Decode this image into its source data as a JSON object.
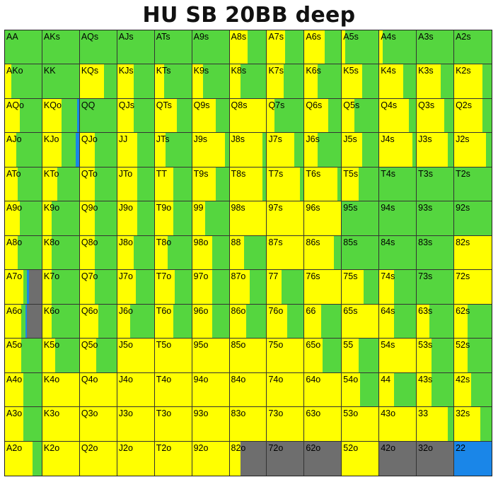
{
  "chart_data": {
    "type": "heatmap",
    "title": "HU SB 20BB deep",
    "colors": {
      "yellow": "#ffff00",
      "green": "#55d63f",
      "blue": "#1a86e8",
      "gray": "#6e6e6e"
    },
    "rows": [
      [
        [
          "AA",
          0,
          1,
          0,
          0
        ],
        [
          "AKs",
          0,
          1,
          0,
          0
        ],
        [
          "AQs",
          0,
          1,
          0,
          0
        ],
        [
          "AJs",
          0,
          1,
          0,
          0
        ],
        [
          "ATs",
          0,
          1,
          0,
          0
        ],
        [
          "A9s",
          0,
          1,
          0,
          0
        ],
        [
          "A8s",
          0.5,
          0.5,
          0,
          0
        ],
        [
          "A7s",
          0.5,
          0.5,
          0,
          0
        ],
        [
          "A6s",
          0.55,
          0.45,
          0,
          0
        ],
        [
          "A5s",
          0.1,
          0.9,
          0,
          0
        ],
        [
          "A4s",
          0.1,
          0.9,
          0,
          0
        ],
        [
          "A3s",
          0,
          1,
          0,
          0
        ],
        [
          "A2s",
          0,
          1,
          0,
          0
        ]
      ],
      [
        [
          "AKo",
          0.18,
          0.82,
          0,
          0
        ],
        [
          "KK",
          0,
          1,
          0,
          0
        ],
        [
          "KQs",
          0.65,
          0.35,
          0,
          0
        ],
        [
          "KJs",
          0.45,
          0.55,
          0,
          0
        ],
        [
          "KTs",
          0.25,
          0.75,
          0,
          0
        ],
        [
          "K9s",
          0.3,
          0.7,
          0,
          0
        ],
        [
          "K8s",
          0.3,
          0.7,
          0,
          0
        ],
        [
          "K7s",
          0.45,
          0.55,
          0,
          0
        ],
        [
          "K6s",
          0.35,
          0.65,
          0,
          0
        ],
        [
          "K5s",
          0.55,
          0.45,
          0,
          0
        ],
        [
          "K4s",
          0.65,
          0.35,
          0,
          0
        ],
        [
          "K3s",
          0.65,
          0.35,
          0,
          0
        ],
        [
          "K2s",
          0.75,
          0.25,
          0,
          0
        ]
      ],
      [
        [
          "AQo",
          0.4,
          0.6,
          0,
          0
        ],
        [
          "KQo",
          0.52,
          0.42,
          0.06,
          0
        ],
        [
          "QQ",
          0,
          1,
          0,
          0
        ],
        [
          "QJs",
          0.45,
          0.55,
          0,
          0
        ],
        [
          "QTs",
          0.6,
          0.4,
          0,
          0
        ],
        [
          "Q9s",
          0.65,
          0.35,
          0,
          0
        ],
        [
          "Q8s",
          1,
          0,
          0,
          0
        ],
        [
          "Q7s",
          0.2,
          0.8,
          0,
          0
        ],
        [
          "Q6s",
          0.65,
          0.35,
          0,
          0
        ],
        [
          "Q5s",
          0.35,
          0.65,
          0,
          0
        ],
        [
          "Q4s",
          0.8,
          0.2,
          0,
          0
        ],
        [
          "Q3s",
          0.75,
          0.25,
          0,
          0
        ],
        [
          "Q2s",
          0.75,
          0.25,
          0,
          0
        ]
      ],
      [
        [
          "AJo",
          0.3,
          0.7,
          0,
          0
        ],
        [
          "KJo",
          0.52,
          0.38,
          0.1,
          0
        ],
        [
          "QJo",
          0.4,
          0.6,
          0,
          0
        ],
        [
          "JJ",
          0.55,
          0.45,
          0,
          0
        ],
        [
          "JTs",
          0.3,
          0.7,
          0,
          0
        ],
        [
          "J9s",
          0.9,
          0.1,
          0,
          0
        ],
        [
          "J8s",
          0.9,
          0.1,
          0,
          0
        ],
        [
          "J7s",
          0.75,
          0.25,
          0,
          0
        ],
        [
          "J6s",
          0.35,
          0.65,
          0,
          0
        ],
        [
          "J5s",
          0.55,
          0.45,
          0,
          0
        ],
        [
          "J4s",
          0.9,
          0.1,
          0,
          0
        ],
        [
          "J3s",
          0.85,
          0.15,
          0,
          0
        ],
        [
          "J2s",
          0.85,
          0.15,
          0,
          0
        ]
      ],
      [
        [
          "ATo",
          0.35,
          0.65,
          0,
          0
        ],
        [
          "KTo",
          0.4,
          0.6,
          0,
          0
        ],
        [
          "QTo",
          0.4,
          0.6,
          0,
          0
        ],
        [
          "JTo",
          0.55,
          0.45,
          0,
          0
        ],
        [
          "TT",
          0.5,
          0.5,
          0,
          0
        ],
        [
          "T9s",
          0.65,
          0.35,
          0,
          0
        ],
        [
          "T8s",
          0.9,
          0.1,
          0,
          0
        ],
        [
          "T7s",
          0.9,
          0.1,
          0,
          0
        ],
        [
          "T6s",
          0.9,
          0.1,
          0,
          0
        ],
        [
          "T5s",
          0.45,
          0.55,
          0,
          0
        ],
        [
          "T4s",
          0,
          1,
          0,
          0
        ],
        [
          "T3s",
          0,
          1,
          0,
          0
        ],
        [
          "T2s",
          0,
          1,
          0,
          0
        ]
      ],
      [
        [
          "A9o",
          0.4,
          0.6,
          0,
          0
        ],
        [
          "K9o",
          0.25,
          0.75,
          0,
          0
        ],
        [
          "Q9o",
          0.4,
          0.6,
          0,
          0
        ],
        [
          "J9o",
          0.55,
          0.45,
          0,
          0
        ],
        [
          "T9o",
          0.5,
          0.5,
          0,
          0
        ],
        [
          "99",
          0.35,
          0.65,
          0,
          0
        ],
        [
          "98s",
          1,
          0,
          0,
          0
        ],
        [
          "97s",
          1,
          0,
          0,
          0
        ],
        [
          "96s",
          1,
          0,
          0,
          0
        ],
        [
          "95s",
          0,
          1,
          0,
          0
        ],
        [
          "94s",
          0,
          1,
          0,
          0
        ],
        [
          "93s",
          0,
          1,
          0,
          0
        ],
        [
          "92s",
          0,
          1,
          0,
          0
        ]
      ],
      [
        [
          "A8o",
          0.35,
          0.65,
          0,
          0
        ],
        [
          "K8o",
          0.25,
          0.75,
          0,
          0
        ],
        [
          "Q8o",
          0.4,
          0.6,
          0,
          0
        ],
        [
          "J8o",
          0.45,
          0.55,
          0,
          0
        ],
        [
          "T8o",
          0.35,
          0.65,
          0,
          0
        ],
        [
          "98o",
          0.55,
          0.45,
          0,
          0
        ],
        [
          "88",
          0.4,
          0.6,
          0,
          0
        ],
        [
          "87s",
          1,
          0,
          0,
          0
        ],
        [
          "86s",
          0.8,
          0.2,
          0,
          0
        ],
        [
          "85s",
          0,
          1,
          0,
          0
        ],
        [
          "84s",
          0,
          1,
          0,
          0
        ],
        [
          "83s",
          0,
          1,
          0,
          0
        ],
        [
          "82s",
          1,
          0,
          0,
          0
        ]
      ],
      [
        [
          "A7o",
          0.5,
          0.1,
          0.05,
          0.35
        ],
        [
          "K7o",
          0.25,
          0.75,
          0,
          0
        ],
        [
          "Q7o",
          0.4,
          0.6,
          0,
          0
        ],
        [
          "J7o",
          0.5,
          0.5,
          0,
          0
        ],
        [
          "T7o",
          0.55,
          0.45,
          0,
          0
        ],
        [
          "97o",
          0.55,
          0.45,
          0,
          0
        ],
        [
          "87o",
          0.55,
          0.45,
          0,
          0
        ],
        [
          "77",
          0.4,
          0.6,
          0,
          0
        ],
        [
          "76s",
          1,
          0,
          0,
          0
        ],
        [
          "75s",
          0.6,
          0.4,
          0,
          0
        ],
        [
          "74s",
          0.4,
          0.6,
          0,
          0
        ],
        [
          "73s",
          0,
          1,
          0,
          0
        ],
        [
          "72s",
          1,
          0,
          0,
          0
        ]
      ],
      [
        [
          "A6o",
          0.45,
          0.1,
          0.05,
          0.4
        ],
        [
          "K6o",
          0.25,
          0.75,
          0,
          0
        ],
        [
          "Q6o",
          0.5,
          0.5,
          0,
          0
        ],
        [
          "J6o",
          0.35,
          0.65,
          0,
          0
        ],
        [
          "T6o",
          0.5,
          0.5,
          0,
          0
        ],
        [
          "96o",
          0.55,
          0.45,
          0,
          0
        ],
        [
          "86o",
          0.45,
          0.55,
          0,
          0
        ],
        [
          "76o",
          0.55,
          0.45,
          0,
          0
        ],
        [
          "66",
          0.45,
          0.55,
          0,
          0
        ],
        [
          "65s",
          1,
          0,
          0,
          0
        ],
        [
          "64s",
          0.4,
          0.6,
          0,
          0
        ],
        [
          "63s",
          0.35,
          0.65,
          0,
          0
        ],
        [
          "62s",
          0.35,
          0.65,
          0,
          0
        ]
      ],
      [
        [
          "A5o",
          0.45,
          0.55,
          0,
          0
        ],
        [
          "K5o",
          0.35,
          0.65,
          0,
          0
        ],
        [
          "Q5o",
          0.45,
          0.55,
          0,
          0
        ],
        [
          "J5o",
          1,
          0,
          0,
          0
        ],
        [
          "T5o",
          1,
          0,
          0,
          0
        ],
        [
          "95o",
          1,
          0,
          0,
          0
        ],
        [
          "85o",
          1,
          0,
          0,
          0
        ],
        [
          "75o",
          1,
          0,
          0,
          0
        ],
        [
          "65o",
          0.5,
          0.5,
          0,
          0
        ],
        [
          "55",
          0.45,
          0.55,
          0,
          0
        ],
        [
          "54s",
          1,
          0,
          0,
          0
        ],
        [
          "53s",
          0.4,
          0.6,
          0,
          0
        ],
        [
          "52s",
          0.35,
          0.65,
          0,
          0
        ]
      ],
      [
        [
          "A4o",
          0.5,
          0.5,
          0,
          0
        ],
        [
          "K4o",
          1,
          0,
          0,
          0
        ],
        [
          "Q4o",
          1,
          0,
          0,
          0
        ],
        [
          "J4o",
          1,
          0,
          0,
          0
        ],
        [
          "T4o",
          1,
          0,
          0,
          0
        ],
        [
          "94o",
          1,
          0,
          0,
          0
        ],
        [
          "84o",
          1,
          0,
          0,
          0
        ],
        [
          "74o",
          1,
          0,
          0,
          0
        ],
        [
          "64o",
          1,
          0,
          0,
          0
        ],
        [
          "54o",
          0.5,
          0.5,
          0,
          0
        ],
        [
          "44",
          0.4,
          0.6,
          0,
          0
        ],
        [
          "43s",
          0.4,
          0.6,
          0,
          0
        ],
        [
          "42s",
          0.45,
          0.55,
          0,
          0
        ]
      ],
      [
        [
          "A3o",
          0.5,
          0.5,
          0,
          0
        ],
        [
          "K3o",
          1,
          0,
          0,
          0
        ],
        [
          "Q3o",
          1,
          0,
          0,
          0
        ],
        [
          "J3o",
          1,
          0,
          0,
          0
        ],
        [
          "T3o",
          1,
          0,
          0,
          0
        ],
        [
          "93o",
          1,
          0,
          0,
          0
        ],
        [
          "83o",
          1,
          0,
          0,
          0
        ],
        [
          "73o",
          1,
          0,
          0,
          0
        ],
        [
          "63o",
          1,
          0,
          0,
          0
        ],
        [
          "53o",
          1,
          0,
          0,
          0
        ],
        [
          "43o",
          1,
          0,
          0,
          0
        ],
        [
          "33",
          0.85,
          0.15,
          0,
          0
        ],
        [
          "32s",
          0.7,
          0.3,
          0,
          0
        ]
      ],
      [
        [
          "A2o",
          0.75,
          0.25,
          0,
          0
        ],
        [
          "K2o",
          1,
          0,
          0,
          0
        ],
        [
          "Q2o",
          1,
          0,
          0,
          0
        ],
        [
          "J2o",
          1,
          0,
          0,
          0
        ],
        [
          "T2o",
          1,
          0,
          0,
          0
        ],
        [
          "92o",
          1,
          0,
          0,
          0
        ],
        [
          "82o",
          0.3,
          0,
          0,
          0.7
        ],
        [
          "72o",
          0,
          0,
          0,
          1
        ],
        [
          "62o",
          0,
          0,
          0,
          1
        ],
        [
          "52o",
          1,
          0,
          0,
          0
        ],
        [
          "42o",
          0,
          0,
          0,
          1
        ],
        [
          "32o",
          0,
          0,
          0,
          1
        ],
        [
          "22",
          0,
          0,
          1,
          0
        ]
      ]
    ]
  }
}
